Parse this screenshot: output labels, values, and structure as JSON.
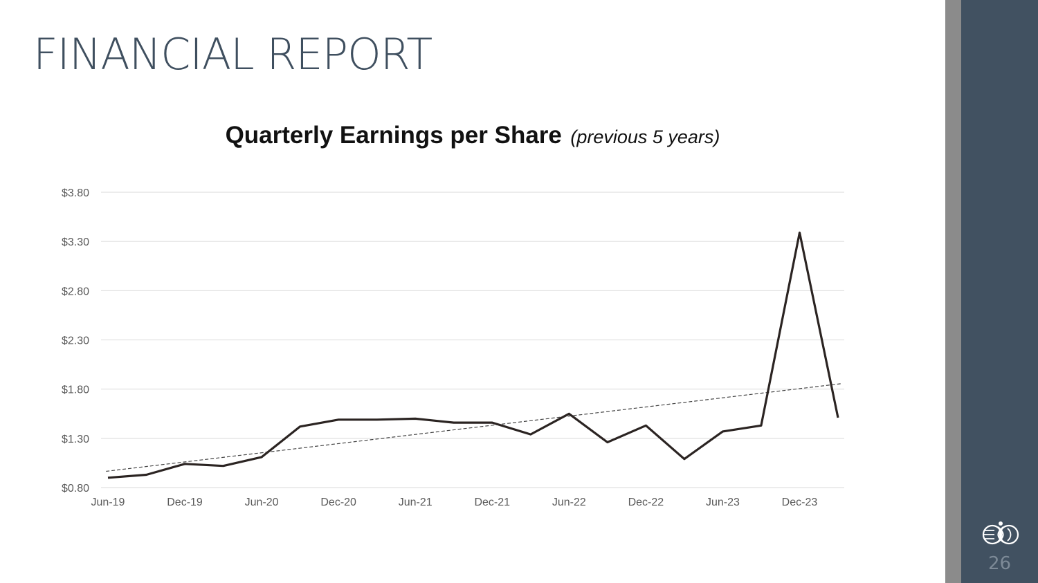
{
  "slide": {
    "title": "FINANCIAL REPORT",
    "page_number": "26",
    "logo_icon": "double-helix-globe-logo"
  },
  "colors": {
    "title": "#3f4f5f",
    "side_panel": "#415161",
    "side_strip": "#8b8b8b",
    "line": "#2b2422",
    "trendline": "#444444",
    "grid": "#d9d9d9",
    "tick_text": "#595959"
  },
  "chart_data": {
    "type": "line",
    "title": "Quarterly Earnings per Share",
    "subtitle": "(previous 5 years)",
    "xlabel": "",
    "ylabel": "",
    "x": [
      "Jun-19",
      "Sep-19",
      "Dec-19",
      "Mar-20",
      "Jun-20",
      "Sep-20",
      "Dec-20",
      "Mar-21",
      "Jun-21",
      "Sep-21",
      "Dec-21",
      "Mar-22",
      "Jun-22",
      "Sep-22",
      "Dec-22",
      "Mar-23",
      "Jun-23",
      "Sep-23",
      "Dec-23",
      "Mar-24"
    ],
    "x_tick_labels": [
      "Jun-19",
      "Dec-19",
      "Jun-20",
      "Dec-20",
      "Jun-21",
      "Dec-21",
      "Jun-22",
      "Dec-22",
      "Jun-23",
      "Dec-23"
    ],
    "series": [
      {
        "values": [
          0.9,
          0.93,
          1.04,
          1.02,
          1.11,
          1.42,
          1.49,
          1.49,
          1.5,
          1.46,
          1.46,
          1.34,
          1.55,
          1.26,
          1.43,
          1.09,
          1.37,
          1.43,
          3.39,
          1.51
        ],
        "style": "solid"
      }
    ],
    "trendline": {
      "type": "linear",
      "style": "dashed"
    },
    "yticks": [
      "$0.80",
      "$1.30",
      "$1.80",
      "$2.30",
      "$2.80",
      "$3.30",
      "$3.80"
    ],
    "ylim": [
      0.8,
      3.8
    ],
    "y_format": "currency",
    "grid": "horizontal",
    "legend": "none"
  }
}
